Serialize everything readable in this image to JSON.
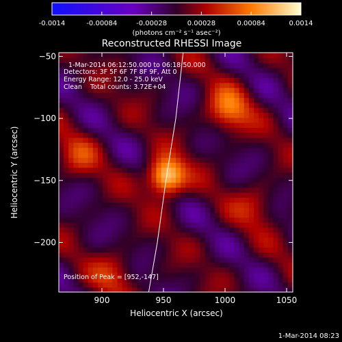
{
  "chart_data": {
    "type": "heatmap",
    "title": "Reconstructed RHESSI Image",
    "xlabel": "Heliocentric X (arcsec)",
    "ylabel": "Heliocentric Y (arcsec)",
    "xlim": [
      865,
      1055
    ],
    "ylim": [
      -240,
      -47
    ],
    "x_ticks": [
      "900",
      "950",
      "1000",
      "1050"
    ],
    "y_ticks": [
      "-50",
      "-100",
      "-150",
      "-200"
    ],
    "colorbar": {
      "ticks": [
        "-0.0014",
        "-0.00084",
        "-0.00028",
        "0.00028",
        "0.00084",
        "0.0014"
      ],
      "range": [
        -0.0014,
        0.0014
      ],
      "units": "(photons cm⁻² s⁻¹ asec⁻²)"
    },
    "annotations": [
      "1-Mar-2014 06:12:50.000 to 06:18:50.000",
      "Detectors: 3F 5F 6F 7F 8F 9F, Att 0",
      "Energy Range: 12.0 - 25.0 keV",
      "Clean    Total counts: 3.72E+04"
    ],
    "peak_label": "Position of Peak = [952,-147]",
    "peak": [
      952,
      -147
    ],
    "sources": [
      {
        "x": 952,
        "y": -147,
        "flux": 0.0014
      },
      {
        "x": 1003,
        "y": -93,
        "flux": 0.00075
      },
      {
        "x": 880,
        "y": -130,
        "flux": 0.0004
      },
      {
        "x": 1025,
        "y": -170,
        "flux": 0.00035
      },
      {
        "x": 910,
        "y": -225,
        "flux": 0.0004
      }
    ],
    "limb": [
      [
        938,
        -240
      ],
      [
        945,
        -200
      ],
      [
        952,
        -150
      ],
      [
        960,
        -100
      ],
      [
        966,
        -47
      ]
    ]
  },
  "footer": {
    "timestamp": "1-Mar-2014 08:23"
  }
}
